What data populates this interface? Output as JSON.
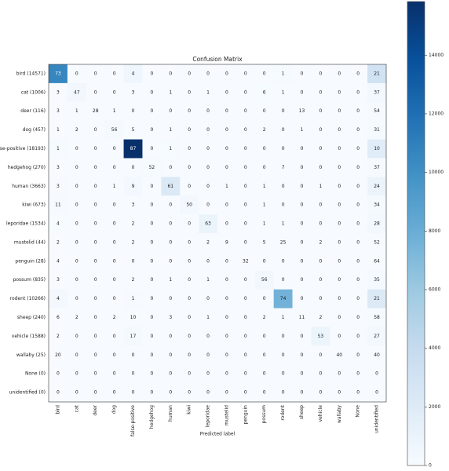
{
  "chart_data": {
    "type": "heatmap",
    "title": "Confusion Matrix",
    "xlabel": "Predicted label",
    "row_labels": [
      "bird (14571)",
      "cat (1006)",
      "deer (116)",
      "dog (457)",
      "false-positive (18193)",
      "hedgehog (270)",
      "human (3663)",
      "kiwi (673)",
      "leporidae (1534)",
      "mustelid (44)",
      "penguin (28)",
      "possum (835)",
      "rodent (10266)",
      "sheep (240)",
      "vehicle (1588)",
      "wallaby (25)",
      "None (0)",
      "unidentified (0)"
    ],
    "col_labels": [
      "bird",
      "cat",
      "deer",
      "dog",
      "false-positive",
      "hedgehog",
      "human",
      "kiwi",
      "leporidae",
      "mustelid",
      "penguin",
      "possum",
      "rodent",
      "sheep",
      "vehicle",
      "wallaby",
      "None",
      "unidentified"
    ],
    "values": [
      [
        73,
        0,
        0,
        0,
        4,
        0,
        0,
        0,
        0,
        0,
        0,
        0,
        1,
        0,
        0,
        0,
        0,
        21
      ],
      [
        3,
        47,
        0,
        0,
        3,
        0,
        1,
        0,
        1,
        0,
        0,
        6,
        1,
        0,
        0,
        0,
        0,
        37
      ],
      [
        3,
        1,
        28,
        1,
        0,
        0,
        0,
        0,
        0,
        0,
        0,
        0,
        0,
        13,
        0,
        0,
        0,
        54
      ],
      [
        1,
        2,
        0,
        56,
        5,
        0,
        1,
        0,
        0,
        0,
        0,
        2,
        0,
        1,
        0,
        0,
        0,
        31
      ],
      [
        1,
        0,
        0,
        0,
        87,
        0,
        1,
        0,
        0,
        0,
        0,
        0,
        0,
        0,
        0,
        0,
        0,
        10
      ],
      [
        3,
        0,
        0,
        0,
        0,
        52,
        0,
        0,
        0,
        0,
        0,
        0,
        7,
        0,
        0,
        0,
        0,
        37
      ],
      [
        3,
        0,
        0,
        1,
        9,
        0,
        61,
        0,
        0,
        1,
        0,
        1,
        0,
        0,
        1,
        0,
        0,
        24
      ],
      [
        11,
        0,
        0,
        0,
        3,
        0,
        0,
        50,
        0,
        0,
        0,
        1,
        0,
        0,
        0,
        0,
        0,
        34
      ],
      [
        4,
        0,
        0,
        0,
        2,
        0,
        0,
        0,
        63,
        0,
        0,
        1,
        1,
        0,
        0,
        0,
        0,
        28
      ],
      [
        2,
        0,
        0,
        0,
        2,
        0,
        0,
        0,
        2,
        9,
        0,
        5,
        25,
        0,
        2,
        0,
        0,
        52
      ],
      [
        4,
        0,
        0,
        0,
        0,
        0,
        0,
        0,
        0,
        0,
        32,
        0,
        0,
        0,
        0,
        0,
        0,
        64
      ],
      [
        3,
        0,
        0,
        0,
        2,
        0,
        1,
        0,
        1,
        0,
        0,
        56,
        0,
        0,
        0,
        0,
        0,
        35
      ],
      [
        4,
        0,
        0,
        0,
        1,
        0,
        0,
        0,
        0,
        0,
        0,
        0,
        74,
        0,
        0,
        0,
        0,
        21
      ],
      [
        6,
        2,
        0,
        2,
        10,
        0,
        3,
        0,
        1,
        0,
        0,
        2,
        1,
        11,
        2,
        0,
        0,
        58
      ],
      [
        2,
        0,
        0,
        0,
        17,
        0,
        0,
        0,
        0,
        0,
        0,
        0,
        0,
        0,
        53,
        0,
        0,
        27
      ],
      [
        20,
        0,
        0,
        0,
        0,
        0,
        0,
        0,
        0,
        0,
        0,
        0,
        0,
        0,
        0,
        40,
        0,
        40
      ],
      [
        0,
        0,
        0,
        0,
        0,
        0,
        0,
        0,
        0,
        0,
        0,
        0,
        0,
        0,
        0,
        0,
        0,
        0
      ],
      [
        0,
        0,
        0,
        0,
        0,
        0,
        0,
        0,
        0,
        0,
        0,
        0,
        0,
        0,
        0,
        0,
        0,
        0
      ]
    ],
    "colorbar": {
      "lim": [
        0,
        15828
      ],
      "ticks": [
        0,
        2000,
        4000,
        6000,
        8000,
        10000,
        12000,
        14000
      ]
    },
    "colormap": "Blues"
  }
}
